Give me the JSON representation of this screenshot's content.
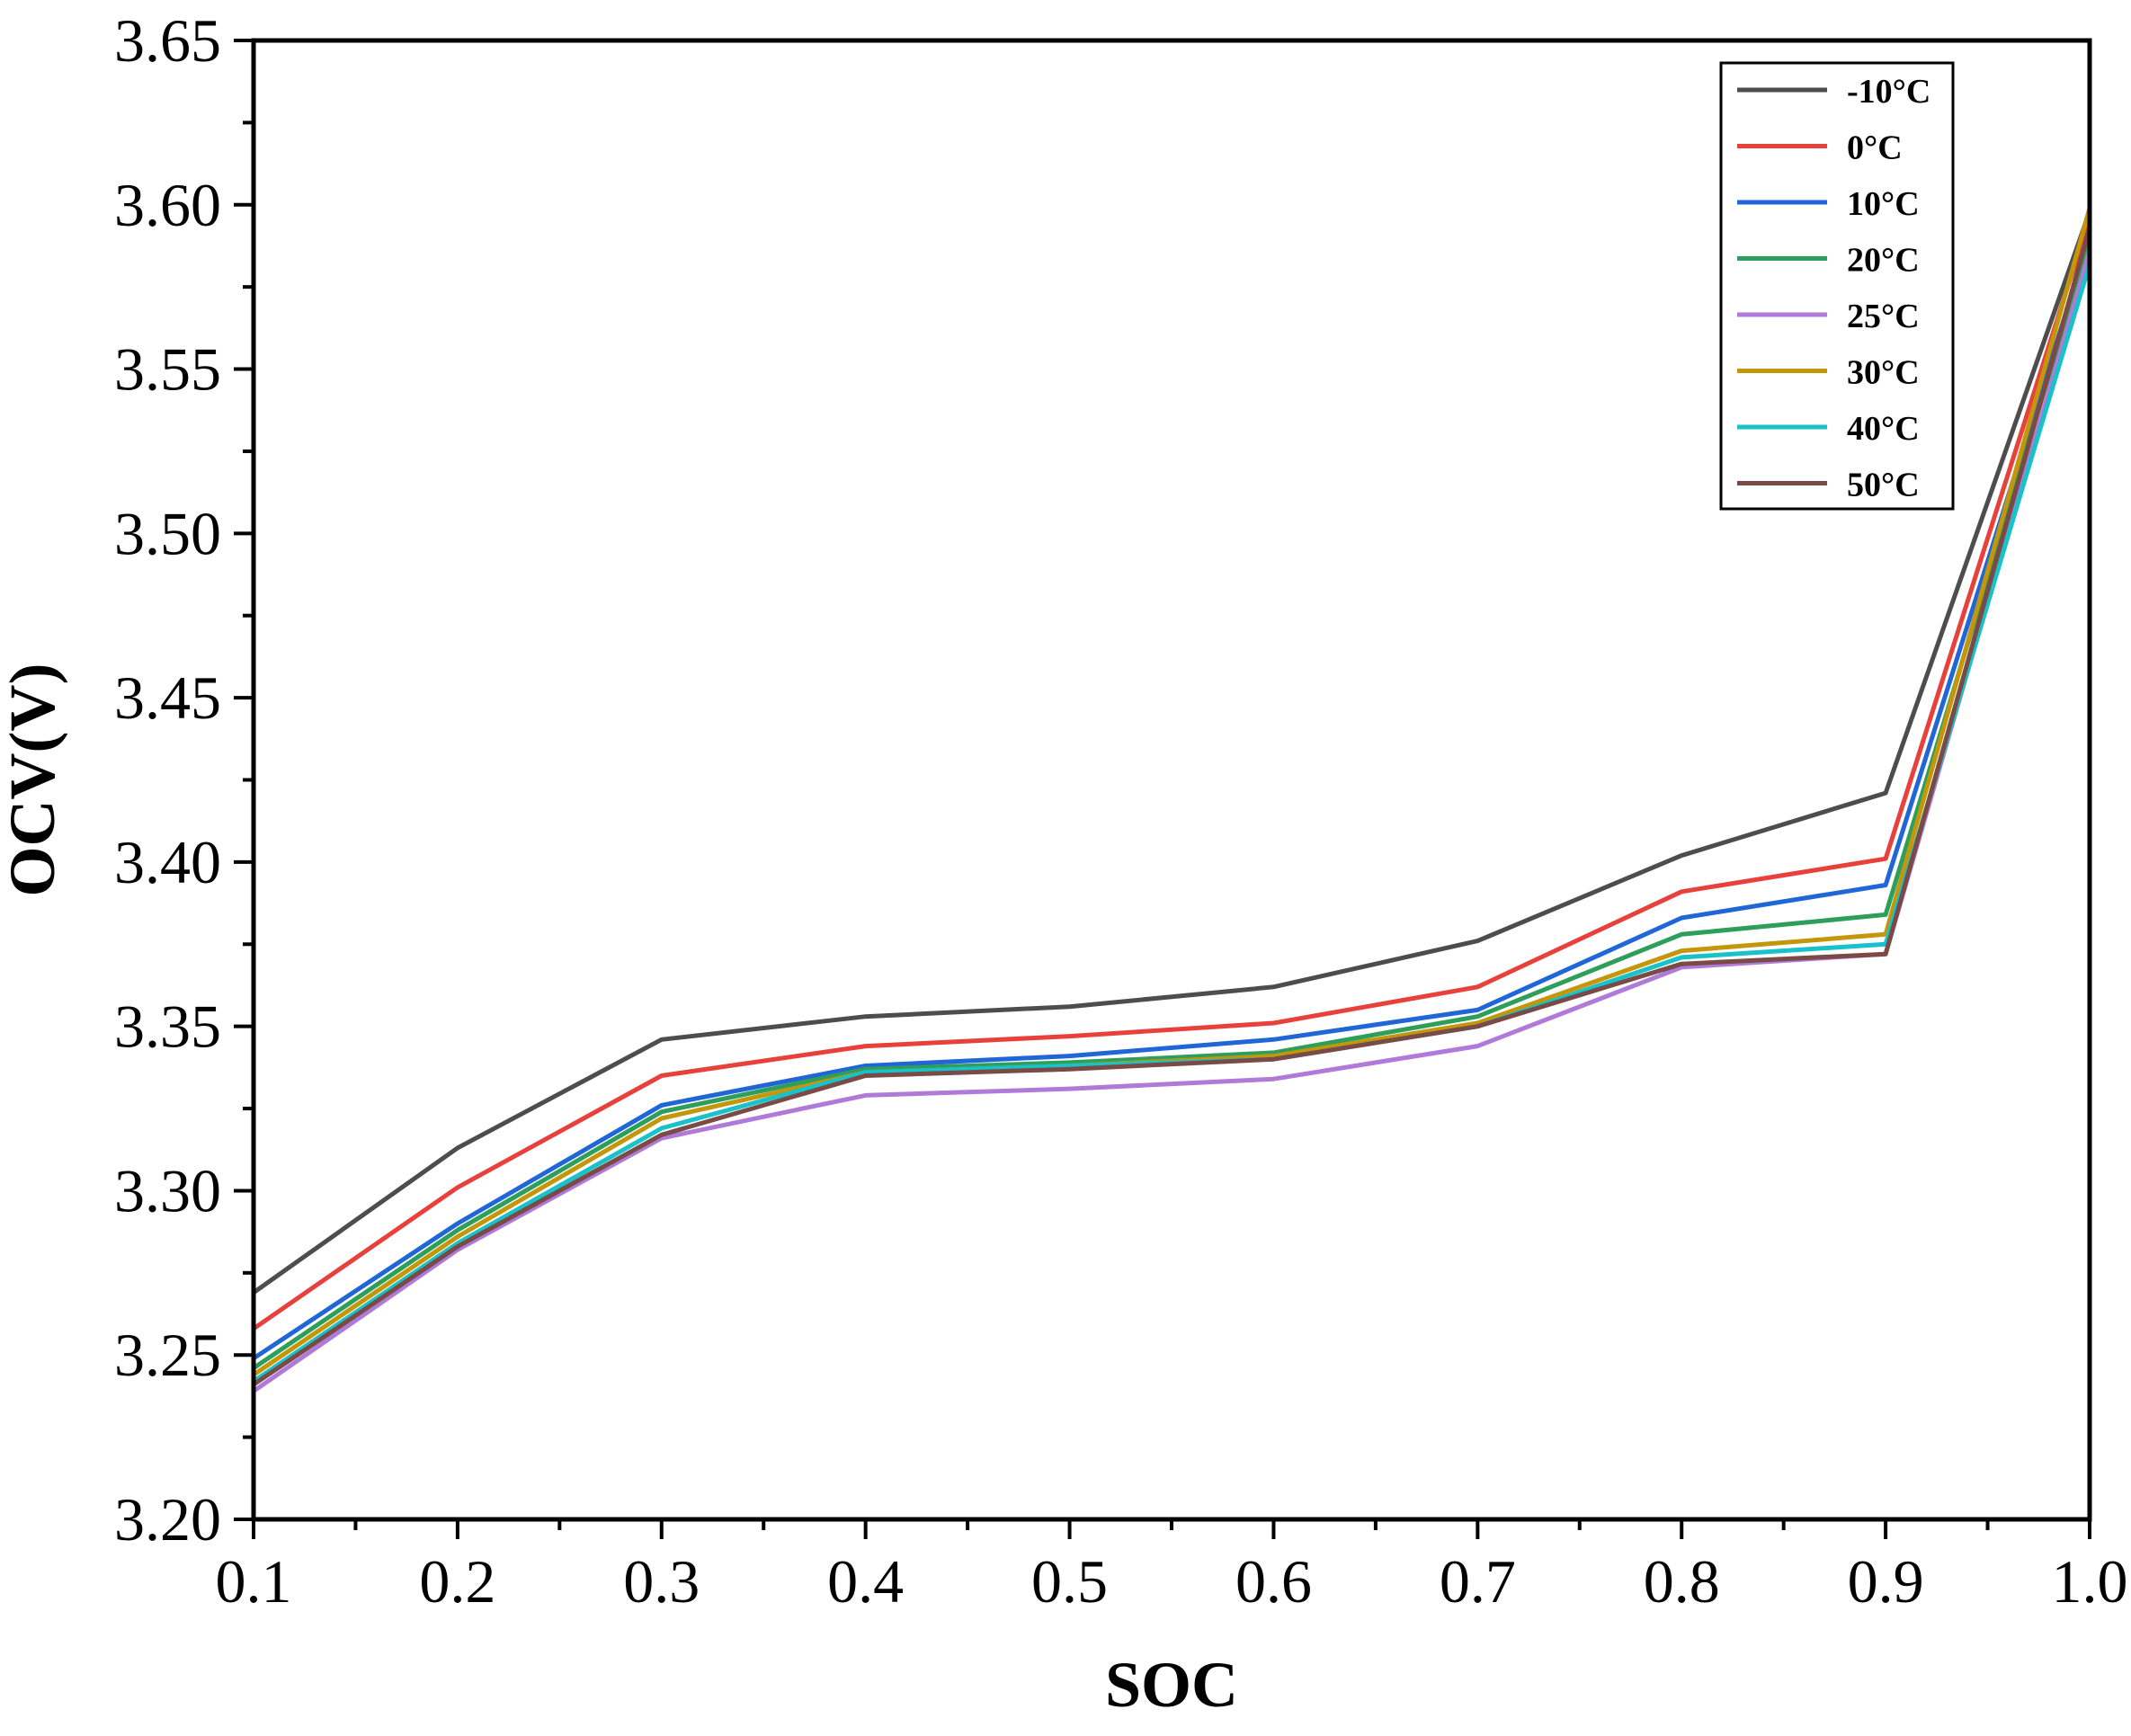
{
  "chart_data": {
    "type": "line",
    "title": "",
    "xlabel": "SOC",
    "ylabel": "OCV(V)",
    "xlim": [
      0.1,
      1.0
    ],
    "ylim": [
      3.2,
      3.65
    ],
    "xticks": [
      "0.1",
      "0.2",
      "0.3",
      "0.4",
      "0.5",
      "0.6",
      "0.7",
      "0.8",
      "0.9",
      "1.0"
    ],
    "yticks": [
      "3.20",
      "3.25",
      "3.30",
      "3.35",
      "3.40",
      "3.45",
      "3.50",
      "3.55",
      "3.60",
      "3.65"
    ],
    "grid": false,
    "legend_position": "top-right",
    "x": [
      0.1,
      0.2,
      0.3,
      0.4,
      0.5,
      0.6,
      0.7,
      0.8,
      0.9,
      1.0
    ],
    "series": [
      {
        "name": "-10°C",
        "color": "#4d4d4d",
        "values": [
          3.269,
          3.313,
          3.346,
          3.353,
          3.356,
          3.362,
          3.376,
          3.402,
          3.421,
          3.598
        ]
      },
      {
        "name": "0°C",
        "color": "#e8413c",
        "values": [
          3.258,
          3.301,
          3.335,
          3.344,
          3.347,
          3.351,
          3.362,
          3.391,
          3.401,
          3.596
        ]
      },
      {
        "name": "10°C",
        "color": "#2066d6",
        "values": [
          3.249,
          3.29,
          3.326,
          3.338,
          3.341,
          3.346,
          3.355,
          3.383,
          3.393,
          3.59
        ]
      },
      {
        "name": "20°C",
        "color": "#2e9e5b",
        "values": [
          3.246,
          3.288,
          3.324,
          3.337,
          3.339,
          3.342,
          3.353,
          3.378,
          3.384,
          3.589
        ]
      },
      {
        "name": "25°C",
        "color": "#b07ad9",
        "values": [
          3.239,
          3.282,
          3.316,
          3.329,
          3.331,
          3.334,
          3.344,
          3.368,
          3.372,
          3.586
        ]
      },
      {
        "name": "30°C",
        "color": "#c4960a",
        "values": [
          3.244,
          3.286,
          3.322,
          3.336,
          3.338,
          3.341,
          3.351,
          3.373,
          3.378,
          3.599
        ]
      },
      {
        "name": "40°C",
        "color": "#18c2c8",
        "values": [
          3.242,
          3.284,
          3.319,
          3.336,
          3.338,
          3.34,
          3.35,
          3.371,
          3.375,
          3.582
        ]
      },
      {
        "name": "50°C",
        "color": "#7a4a46",
        "values": [
          3.241,
          3.283,
          3.317,
          3.335,
          3.337,
          3.34,
          3.35,
          3.369,
          3.372,
          3.593
        ]
      }
    ]
  }
}
